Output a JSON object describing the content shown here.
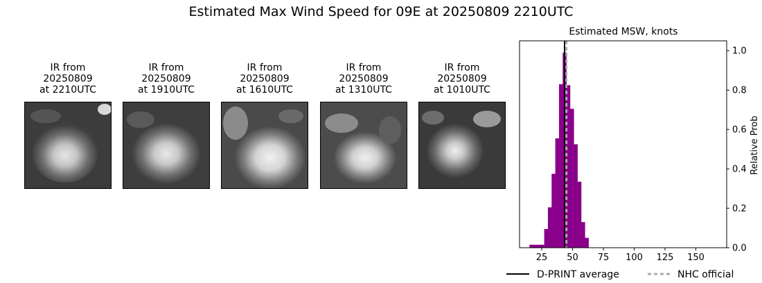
{
  "figure": {
    "title": "Estimated Max Wind Speed for 09E at 20250809 2210UTC"
  },
  "ir_panels": [
    {
      "line1": "IR from",
      "line2": "20250809",
      "line3": "at 2210UTC"
    },
    {
      "line1": "IR from",
      "line2": "20250809",
      "line3": "at 1910UTC"
    },
    {
      "line1": "IR from",
      "line2": "20250809",
      "line3": "at 1610UTC"
    },
    {
      "line1": "IR from",
      "line2": "20250809",
      "line3": "at 1310UTC"
    },
    {
      "line1": "IR from",
      "line2": "20250809",
      "line3": "at 1010UTC"
    }
  ],
  "chart_data": {
    "type": "bar",
    "title": "Estimated MSW, knots",
    "xlabel": "",
    "ylabel": "Relative Prob",
    "xlim": [
      7,
      175
    ],
    "ylim": [
      0,
      1.05
    ],
    "xticks": [
      25,
      50,
      75,
      100,
      125,
      150
    ],
    "yticks": [
      0.0,
      0.2,
      0.4,
      0.6,
      0.8,
      1.0
    ],
    "ytick_labels": [
      "0.0",
      "0.2",
      "0.4",
      "0.6",
      "0.8",
      "1.0"
    ],
    "bin_width": 3,
    "bar_color": "#8B008B",
    "bins": [
      {
        "x0": 15,
        "value": 0.015
      },
      {
        "x0": 18,
        "value": 0.015
      },
      {
        "x0": 21,
        "value": 0.015
      },
      {
        "x0": 24,
        "value": 0.015
      },
      {
        "x0": 27,
        "value": 0.095
      },
      {
        "x0": 30,
        "value": 0.205
      },
      {
        "x0": 33,
        "value": 0.375
      },
      {
        "x0": 36,
        "value": 0.555
      },
      {
        "x0": 39,
        "value": 0.83
      },
      {
        "x0": 42,
        "value": 0.99
      },
      {
        "x0": 45,
        "value": 0.825
      },
      {
        "x0": 48,
        "value": 0.705
      },
      {
        "x0": 51,
        "value": 0.525
      },
      {
        "x0": 54,
        "value": 0.335
      },
      {
        "x0": 57,
        "value": 0.13
      },
      {
        "x0": 60,
        "value": 0.05
      }
    ],
    "lines": [
      {
        "name": "D-PRINT average",
        "x": 43.5,
        "color": "#000000",
        "style": "solid"
      },
      {
        "name": "NHC official",
        "x": 45,
        "color": "#aaaaaa",
        "style": "dashed"
      }
    ],
    "legend": {
      "placement": "bottom",
      "entries": [
        "D-PRINT average",
        "NHC official"
      ]
    },
    "grid": false
  }
}
